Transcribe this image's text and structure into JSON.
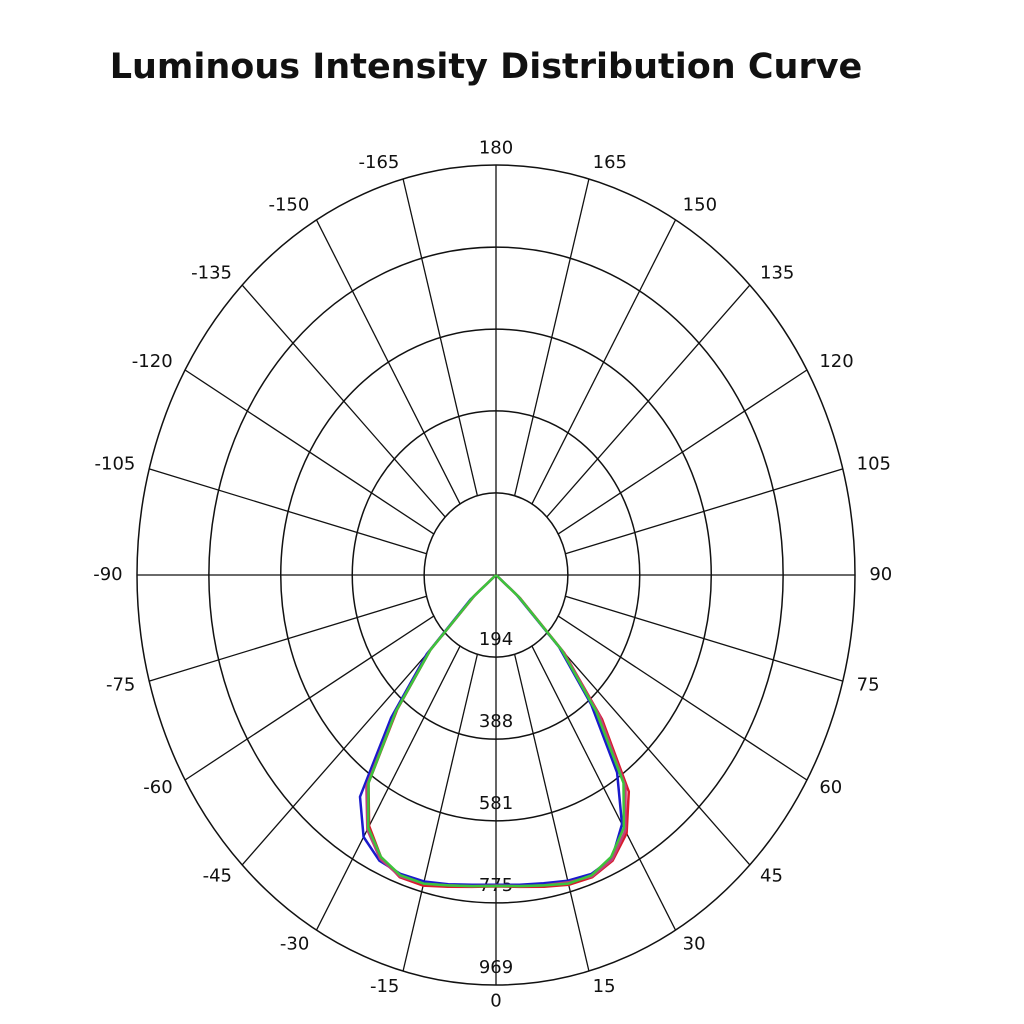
{
  "chart_data": {
    "type": "polar",
    "title": "Luminous Intensity Distribution Curve",
    "x": [
      -90,
      -85,
      -80,
      -75,
      -70,
      -65,
      -60,
      -55,
      -50,
      -45,
      -40,
      -35,
      -30,
      -25,
      -20,
      -15,
      -10,
      -5,
      0,
      5,
      10,
      15,
      20,
      25,
      30,
      35,
      40,
      45,
      50,
      55,
      60,
      65,
      70,
      75,
      80,
      85,
      90
    ],
    "series": [
      {
        "color": "#1a1acc",
        "values": [
          0,
          0,
          0,
          0,
          0,
          0,
          0,
          0,
          90,
          265,
          440,
          640,
          715,
          745,
          752,
          750,
          742,
          735,
          732,
          735,
          740,
          748,
          752,
          740,
          680,
          570,
          400,
          240,
          70,
          0,
          0,
          0,
          0,
          0,
          0,
          0,
          0
        ]
      },
      {
        "color": "#d81b2a",
        "values": [
          0,
          0,
          0,
          0,
          0,
          0,
          0,
          0,
          75,
          250,
          415,
          600,
          685,
          735,
          760,
          760,
          748,
          740,
          736,
          740,
          748,
          758,
          760,
          745,
          705,
          625,
          445,
          260,
          85,
          0,
          0,
          0,
          0,
          0,
          0,
          0,
          0
        ]
      },
      {
        "color": "#c0407a",
        "values": [
          0,
          0,
          0,
          0,
          0,
          0,
          0,
          0,
          78,
          252,
          420,
          610,
          695,
          740,
          758,
          755,
          745,
          738,
          734,
          738,
          745,
          752,
          758,
          742,
          698,
          610,
          435,
          255,
          80,
          0,
          0,
          0,
          0,
          0,
          0,
          0,
          0
        ]
      },
      {
        "color": "#3cc43c",
        "values": [
          0,
          0,
          0,
          0,
          0,
          0,
          0,
          0,
          80,
          250,
          420,
          600,
          690,
          735,
          755,
          755,
          745,
          738,
          735,
          738,
          745,
          755,
          755,
          735,
          690,
          600,
          420,
          250,
          80,
          0,
          0,
          0,
          0,
          0,
          0,
          0,
          0
        ]
      }
    ],
    "angle_ticks": [
      0,
      15,
      30,
      45,
      60,
      75,
      90,
      105,
      120,
      135,
      150,
      165,
      180,
      -165,
      -150,
      -135,
      -120,
      -105,
      -90,
      -75,
      -60,
      -45,
      -30,
      -15
    ],
    "rlim": [
      0,
      969
    ],
    "rticks": [
      194,
      388,
      581,
      775,
      969
    ]
  }
}
